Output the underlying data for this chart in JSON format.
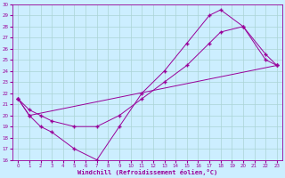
{
  "xlabel": "Windchill (Refroidissement éolien,°C)",
  "bg_color": "#cceeff",
  "line_color": "#990099",
  "grid_color": "#aad4d4",
  "xlim": [
    -0.5,
    23.5
  ],
  "ylim": [
    16,
    30
  ],
  "xticks": [
    0,
    1,
    2,
    3,
    4,
    5,
    6,
    7,
    8,
    9,
    10,
    11,
    12,
    13,
    14,
    15,
    16,
    17,
    18,
    19,
    20,
    21,
    22,
    23
  ],
  "yticks": [
    16,
    17,
    18,
    19,
    20,
    21,
    22,
    23,
    24,
    25,
    26,
    27,
    28,
    29,
    30
  ],
  "line1_x": [
    0,
    1,
    2,
    3,
    5,
    7,
    9,
    11,
    13,
    15,
    17,
    18,
    20,
    22,
    23
  ],
  "line1_y": [
    21.5,
    20.0,
    19.0,
    18.5,
    17.0,
    16.0,
    19.0,
    22.0,
    24.0,
    26.5,
    29.0,
    29.5,
    28.0,
    25.0,
    24.5
  ],
  "line2_x": [
    0,
    1,
    2,
    3,
    5,
    7,
    9,
    11,
    13,
    15,
    17,
    18,
    20,
    22,
    23
  ],
  "line2_y": [
    21.5,
    20.5,
    20.0,
    19.5,
    19.0,
    19.0,
    20.0,
    21.5,
    23.0,
    24.5,
    26.5,
    27.5,
    28.0,
    25.5,
    24.5
  ],
  "line3_x": [
    0,
    1,
    23
  ],
  "line3_y": [
    21.5,
    20.0,
    24.5
  ],
  "marker": "+"
}
